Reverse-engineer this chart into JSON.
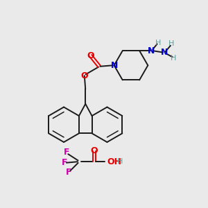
{
  "bg_color": "#eaeaea",
  "black": "#1a1a1a",
  "red": "#e60000",
  "blue": "#0000cc",
  "teal": "#5f9ea0",
  "magenta": "#cc00aa",
  "lw": 1.4,
  "lw_inner": 1.1,
  "figsize": [
    3.0,
    3.0
  ],
  "dpi": 100,
  "xlim": [
    0,
    10
  ],
  "ylim": [
    0,
    10
  ]
}
